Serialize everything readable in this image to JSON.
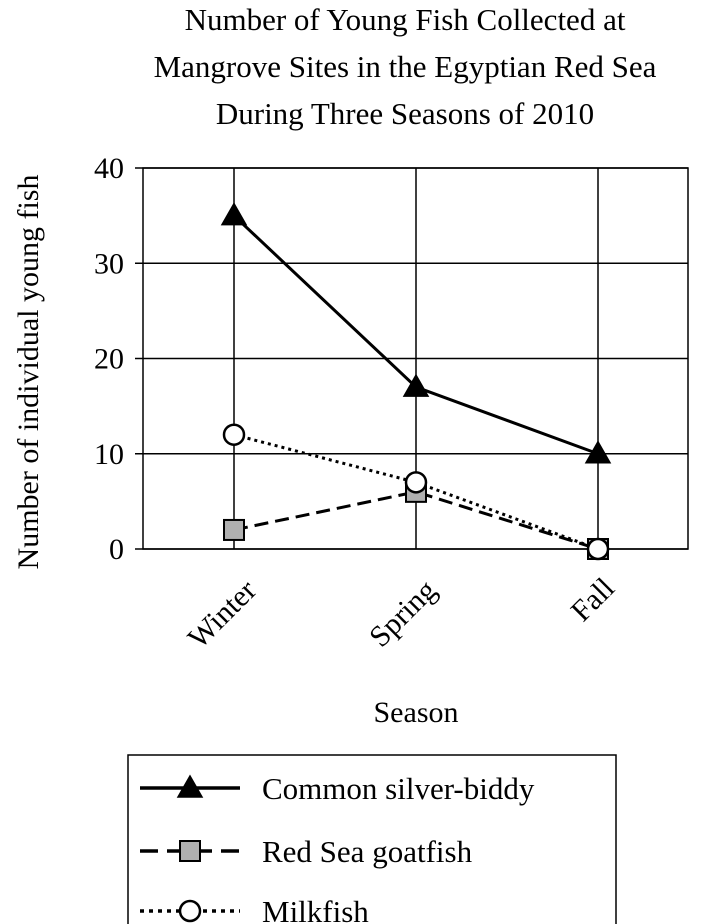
{
  "chart_data": {
    "type": "line",
    "title_lines": [
      "Number of Young Fish Collected at",
      "Mangrove Sites in the Egyptian Red Sea",
      "During Three Seasons of 2010"
    ],
    "xlabel": "Season",
    "ylabel": "Number of individual young fish",
    "categories": [
      "Winter",
      "Spring",
      "Fall"
    ],
    "ylim": [
      0,
      40
    ],
    "yticks": [
      0,
      10,
      20,
      30,
      40
    ],
    "grid": true,
    "legend_position": "bottom",
    "series": [
      {
        "name": "Common silver-biddy",
        "values": [
          35,
          17,
          10
        ],
        "marker": "triangle",
        "line": "solid",
        "marker_fill": "#000000"
      },
      {
        "name": "Red Sea goatfish",
        "values": [
          2,
          6,
          0
        ],
        "marker": "square",
        "line": "dashed",
        "marker_fill": "#b0b0b0"
      },
      {
        "name": "Milkfish",
        "values": [
          12,
          7,
          0
        ],
        "marker": "circle",
        "line": "dotted",
        "marker_fill": "#ffffff"
      }
    ]
  }
}
